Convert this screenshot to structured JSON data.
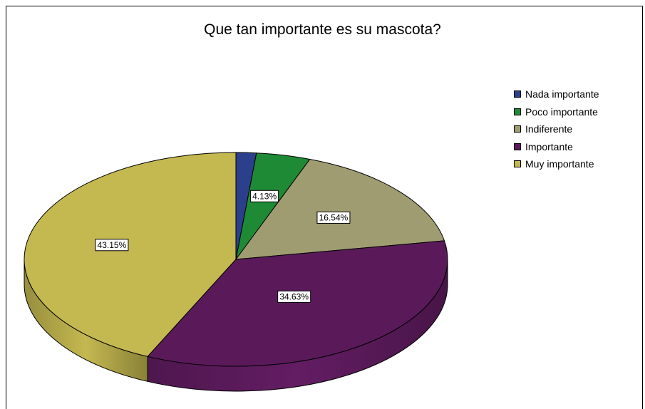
{
  "chart_data": {
    "type": "pie",
    "title": "Que tan importante es su mascota?",
    "legend_position": "right",
    "slices": [
      {
        "name": "Nada importante",
        "value": 1.55,
        "label": "",
        "color": "#2b3f8c"
      },
      {
        "name": "Poco importante",
        "value": 4.13,
        "label": "4.13%",
        "color": "#1e8a35"
      },
      {
        "name": "Indiferente",
        "value": 16.54,
        "label": "16.54%",
        "color": "#a09c72"
      },
      {
        "name": "Importante",
        "value": 34.63,
        "label": "34.63%",
        "color": "#5a1a5a"
      },
      {
        "name": "Muy importante",
        "value": 43.15,
        "label": "43.15%",
        "color": "#c4b850"
      }
    ]
  }
}
